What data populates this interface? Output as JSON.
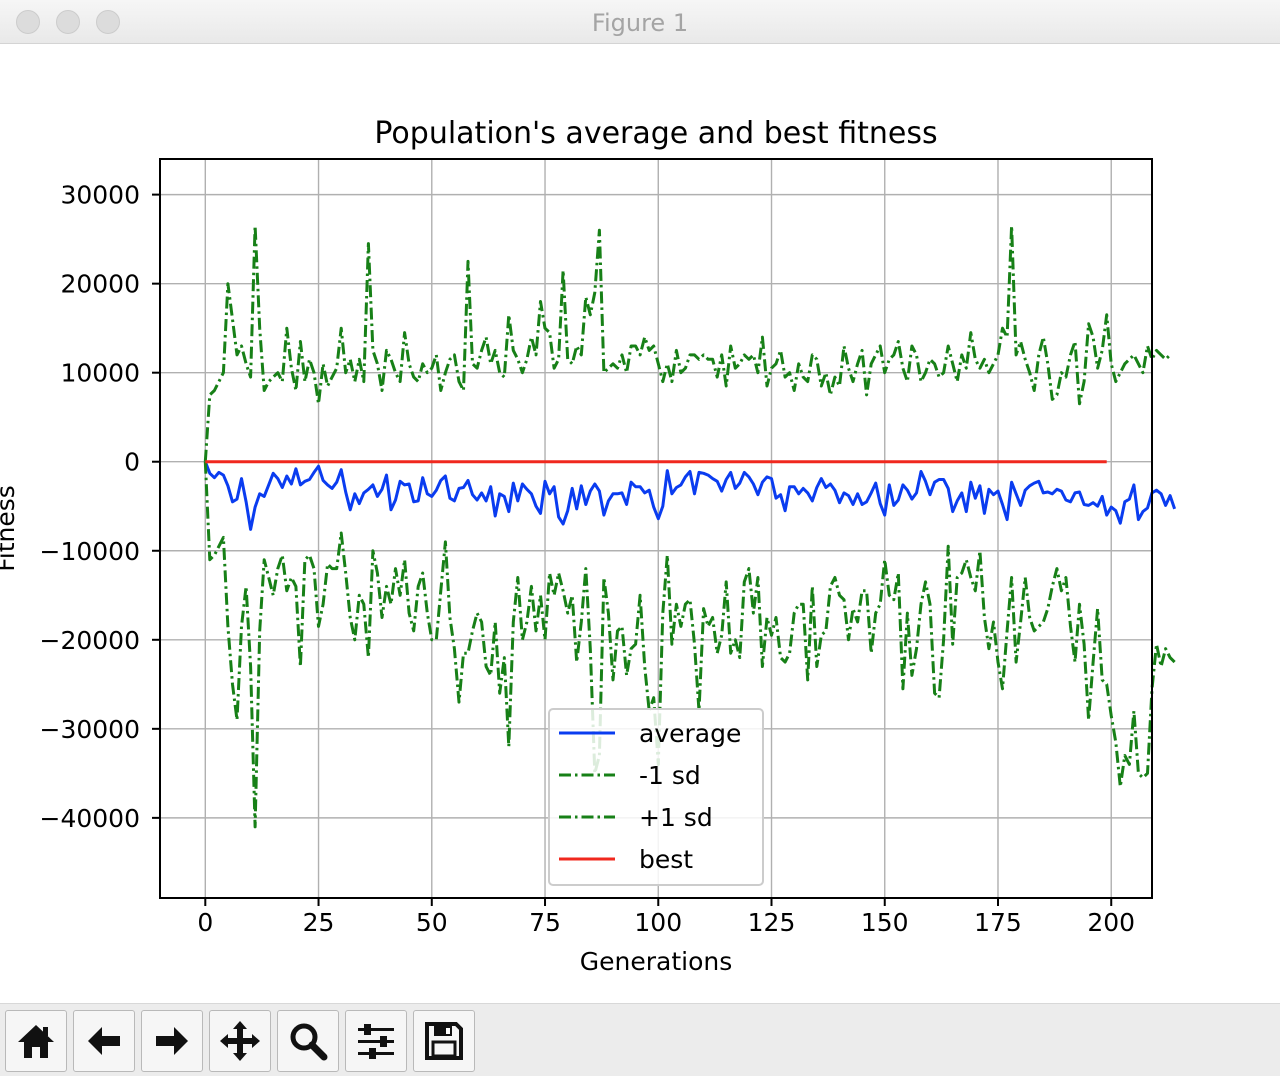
{
  "window": {
    "title": "Figure 1"
  },
  "toolbar": {
    "buttons": [
      {
        "name": "home-icon"
      },
      {
        "name": "back-arrow-icon"
      },
      {
        "name": "forward-arrow-icon"
      },
      {
        "name": "pan-move-icon"
      },
      {
        "name": "zoom-magnifier-icon"
      },
      {
        "name": "subplots-config-icon"
      },
      {
        "name": "save-floppy-icon"
      }
    ]
  },
  "chart_data": {
    "type": "line",
    "title": "Population's average and best fitness",
    "xlabel": "Generations",
    "ylabel": "Fitness",
    "xlim": [
      -10,
      209
    ],
    "ylim": [
      -49000,
      34000
    ],
    "xticks": [
      0,
      25,
      50,
      75,
      100,
      125,
      150,
      175,
      200
    ],
    "xtick_labels": [
      "0",
      "25",
      "50",
      "75",
      "100",
      "125",
      "150",
      "175",
      "200"
    ],
    "yticks": [
      30000,
      20000,
      10000,
      0,
      -10000,
      -20000,
      -30000,
      -40000
    ],
    "ytick_labels": [
      "30000",
      "20000",
      "10000",
      "0",
      "−10000",
      "−20000",
      "−30000",
      "−40000"
    ],
    "grid": true,
    "legend_position": "lower-center",
    "x_start": 0,
    "x_step": 1,
    "series": [
      {
        "name": "average",
        "color": "#0a3cf0",
        "style": "solid",
        "values": [
          0,
          -1300,
          -1800,
          -1200,
          -1500,
          -2700,
          -4500,
          -4200,
          -1900,
          -4500,
          -7600,
          -5100,
          -3600,
          -3900,
          -2600,
          -1300,
          -1900,
          -2900,
          -1600,
          -2500,
          -800,
          -2600,
          -2200,
          -2000,
          -1200,
          -500,
          -2100,
          -2600,
          -3000,
          -2300,
          -900,
          -3400,
          -5400,
          -3600,
          -4700,
          -3500,
          -3100,
          -2600,
          -3900,
          -3100,
          -1500,
          -5400,
          -4300,
          -2200,
          -2600,
          -2500,
          -4500,
          -4400,
          -1800,
          -3600,
          -3900,
          -3200,
          -2100,
          -1600,
          -4100,
          -4400,
          -3000,
          -2900,
          -2100,
          -3700,
          -4300,
          -3500,
          -4400,
          -2800,
          -6100,
          -3600,
          -3900,
          -5600,
          -2400,
          -4400,
          -2500,
          -3100,
          -3600,
          -5000,
          -5800,
          -2200,
          -3600,
          -2800,
          -6200,
          -7000,
          -5500,
          -3000,
          -5300,
          -2700,
          -4800,
          -3300,
          -2500,
          -3300,
          -6000,
          -4400,
          -3600,
          -3600,
          -3500,
          -4800,
          -2300,
          -2800,
          -2800,
          -3500,
          -3200,
          -5100,
          -6400,
          -5000,
          -1000,
          -3600,
          -2900,
          -2600,
          -1700,
          -1100,
          -3600,
          -1200,
          -1300,
          -1500,
          -1900,
          -2200,
          -3300,
          -2000,
          -1200,
          -3000,
          -2400,
          -1200,
          -1700,
          -2500,
          -3700,
          -2300,
          -1700,
          -1900,
          -4100,
          -3700,
          -5500,
          -2800,
          -2800,
          -3600,
          -3000,
          -3500,
          -4400,
          -2900,
          -1900,
          -2900,
          -2500,
          -3200,
          -4600,
          -3500,
          -3800,
          -4800,
          -3600,
          -4800,
          -4500,
          -3500,
          -2400,
          -4700,
          -6000,
          -2600,
          -4900,
          -4300,
          -2600,
          -3200,
          -4200,
          -3500,
          -1100,
          -2200,
          -3700,
          -2300,
          -2000,
          -2000,
          -3000,
          -5600,
          -4400,
          -3500,
          -5600,
          -2300,
          -4100,
          -2700,
          -5800,
          -3100,
          -3700,
          -3300,
          -4800,
          -6500,
          -2300,
          -3600,
          -4900,
          -3200,
          -2700,
          -2400,
          -2200,
          -3500,
          -3400,
          -3600,
          -3100,
          -3300,
          -4300,
          -4500,
          -3500,
          -3400,
          -4800,
          -4900,
          -4600,
          -5000,
          -3900,
          -6000,
          -5100,
          -5500,
          -6900,
          -4500,
          -4200,
          -2600,
          -6500,
          -5600,
          -5200,
          -3500,
          -3200,
          -3600,
          -4900,
          -3800,
          -5300
        ]
      },
      {
        "name": "-1 sd",
        "color": "#178017",
        "style": "dashdot",
        "values": [
          0,
          -11000,
          -10500,
          -9500,
          -8500,
          -18500,
          -25000,
          -29000,
          -18500,
          -14000,
          -23000,
          -41000,
          -19000,
          -11000,
          -13000,
          -15000,
          -12000,
          -10500,
          -14500,
          -13000,
          -14000,
          -23000,
          -11000,
          -10500,
          -12000,
          -18500,
          -16000,
          -11500,
          -12000,
          -12000,
          -8000,
          -12500,
          -17500,
          -20000,
          -15000,
          -16000,
          -22000,
          -10000,
          -12500,
          -17500,
          -14000,
          -16000,
          -12000,
          -15000,
          -11000,
          -17000,
          -19000,
          -14000,
          -12500,
          -17000,
          -20000,
          -20000,
          -14500,
          -9000,
          -17500,
          -21000,
          -27000,
          -21500,
          -21500,
          -19000,
          -17000,
          -18000,
          -23000,
          -24000,
          -18000,
          -26000,
          -22000,
          -32000,
          -18000,
          -13000,
          -20000,
          -18000,
          -14000,
          -19000,
          -15000,
          -20000,
          -12500,
          -15000,
          -12500,
          -14500,
          -17000,
          -15000,
          -22500,
          -18000,
          -12000,
          -21000,
          -35000,
          -33000,
          -13000,
          -17000,
          -24500,
          -19000,
          -18500,
          -24000,
          -21000,
          -20500,
          -15000,
          -23000,
          -28000,
          -26500,
          -34000,
          -17000,
          -10500,
          -20500,
          -16000,
          -18500,
          -16000,
          -15500,
          -20500,
          -28000,
          -16500,
          -18500,
          -17500,
          -21500,
          -19500,
          -13500,
          -21500,
          -20000,
          -22000,
          -13500,
          -12000,
          -17000,
          -13000,
          -23000,
          -17500,
          -19500,
          -17500,
          -22000,
          -22500,
          -21500,
          -17000,
          -16000,
          -16000,
          -24500,
          -14000,
          -23000,
          -19500,
          -19000,
          -14000,
          -13000,
          -15000,
          -15500,
          -20000,
          -16500,
          -18000,
          -14500,
          -14500,
          -21500,
          -17000,
          -16000,
          -11000,
          -15000,
          -15500,
          -12500,
          -25500,
          -17000,
          -24000,
          -21000,
          -16000,
          -13500,
          -16000,
          -26000,
          -26500,
          -20000,
          -9500,
          -20500,
          -13000,
          -12500,
          -11000,
          -13000,
          -14500,
          -10000,
          -17500,
          -21000,
          -18000,
          -22500,
          -25500,
          -19000,
          -13000,
          -22500,
          -18000,
          -13000,
          -17500,
          -19000,
          -18500,
          -18000,
          -16500,
          -14000,
          -12000,
          -14500,
          -13000,
          -18500,
          -22500,
          -16000,
          -20500,
          -29000,
          -22500,
          -16500,
          -24500,
          -25000,
          -28500,
          -31500,
          -36500,
          -33000,
          -34000,
          -28000,
          -35000,
          -35500,
          -35000,
          -25500,
          -20500,
          -23000,
          -21000,
          -22000,
          -22500
        ]
      },
      {
        "name": "+1 sd",
        "color": "#178017",
        "style": "dashdot",
        "values": [
          0,
          7500,
          8000,
          9000,
          10000,
          20000,
          16000,
          12000,
          13000,
          11000,
          9500,
          26500,
          15000,
          8000,
          9000,
          9500,
          10000,
          9000,
          15000,
          10500,
          8000,
          13500,
          9000,
          11500,
          10000,
          6500,
          11000,
          8500,
          9500,
          10500,
          15000,
          10000,
          11500,
          9000,
          11500,
          9000,
          24500,
          12500,
          11000,
          8000,
          12500,
          11500,
          10000,
          9000,
          14500,
          11000,
          9500,
          9000,
          11000,
          10000,
          10500,
          12000,
          8000,
          10000,
          11500,
          12000,
          9000,
          8000,
          22500,
          11000,
          10500,
          12500,
          14000,
          11000,
          12500,
          10000,
          9500,
          16500,
          12500,
          11500,
          10000,
          11500,
          14000,
          12000,
          18000,
          15000,
          14500,
          10500,
          11500,
          21500,
          11500,
          11000,
          13000,
          12000,
          18500,
          16500,
          19000,
          26000,
          10000,
          10500,
          11000,
          10500,
          12000,
          10000,
          13000,
          13000,
          12000,
          14000,
          12500,
          13000,
          11000,
          9000,
          11000,
          9000,
          12500,
          10000,
          10500,
          12000,
          12000,
          11500,
          12000,
          11500,
          11500,
          9500,
          12000,
          8500,
          13000,
          10500,
          11000,
          12000,
          11500,
          12000,
          10000,
          14000,
          8500,
          10500,
          11000,
          12500,
          9500,
          10000,
          8000,
          11000,
          9500,
          9000,
          12000,
          11500,
          8500,
          10000,
          7500,
          9500,
          8500,
          13000,
          10500,
          9000,
          11000,
          12500,
          7500,
          11000,
          12000,
          13000,
          10000,
          11500,
          12000,
          13500,
          10500,
          9000,
          13000,
          12000,
          9000,
          10000,
          11500,
          11000,
          9500,
          10000,
          13000,
          11000,
          9000,
          12000,
          10500,
          14500,
          11500,
          10500,
          11500,
          10000,
          11000,
          12000,
          15000,
          14000,
          26500,
          12000,
          13500,
          11500,
          10000,
          8000,
          12000,
          14000,
          11000,
          7000,
          7500,
          10000,
          9500,
          12000,
          13500,
          6500,
          9000,
          15500,
          14000,
          10500,
          12500,
          16500,
          11000,
          9000,
          10000,
          11000,
          11500,
          12000,
          11000,
          10000,
          13000,
          11500,
          12500,
          12000,
          11500,
          12000
        ]
      },
      {
        "name": "best",
        "color": "#f0281e",
        "style": "solid",
        "values": [
          0,
          0,
          0,
          0,
          0,
          0,
          0,
          0,
          0,
          0,
          0,
          0,
          0,
          0,
          0,
          0,
          0,
          0,
          0,
          0,
          0,
          0,
          0,
          0,
          0,
          0,
          0,
          0,
          0,
          0,
          0,
          0,
          0,
          0,
          0,
          0,
          0,
          0,
          0,
          0,
          0,
          0,
          0,
          0,
          0,
          0,
          0,
          0,
          0,
          0,
          0,
          0,
          0,
          0,
          0,
          0,
          0,
          0,
          0,
          0,
          0,
          0,
          0,
          0,
          0,
          0,
          0,
          0,
          0,
          0,
          0,
          0,
          0,
          0,
          0,
          0,
          0,
          0,
          0,
          0,
          0,
          0,
          0,
          0,
          0,
          0,
          0,
          0,
          0,
          0,
          0,
          0,
          0,
          0,
          0,
          0,
          0,
          0,
          0,
          0,
          0,
          0,
          0,
          0,
          0,
          0,
          0,
          0,
          0,
          0,
          0,
          0,
          0,
          0,
          0,
          0,
          0,
          0,
          0,
          0,
          0,
          0,
          0,
          0,
          0,
          0,
          0,
          0,
          0,
          0,
          0,
          0,
          0,
          0,
          0,
          0,
          0,
          0,
          0,
          0,
          0,
          0,
          0,
          0,
          0,
          0,
          0,
          0,
          0,
          0,
          0,
          0,
          0,
          0,
          0,
          0,
          0,
          0,
          0,
          0,
          0,
          0,
          0,
          0,
          0,
          0,
          0,
          0,
          0,
          0,
          0,
          0,
          0,
          0,
          0,
          0,
          0,
          0,
          0,
          0,
          0,
          0,
          0,
          0,
          0,
          0,
          0,
          0,
          0,
          0,
          0,
          0,
          0,
          0,
          0,
          0,
          0,
          0,
          0,
          0
        ]
      }
    ]
  }
}
